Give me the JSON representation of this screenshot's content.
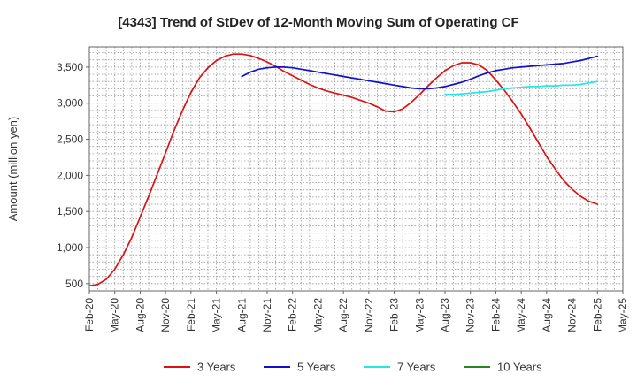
{
  "chart_data": {
    "type": "line",
    "title": "[4343]  Trend of StDev of 12-Month Moving Sum of Operating CF",
    "ylabel": "Amount (million yen)",
    "xlabel": "",
    "ylim": [
      400,
      3780
    ],
    "yticks": [
      500,
      1000,
      1500,
      2000,
      2500,
      3000,
      3500
    ],
    "ytick_labels": [
      "500",
      "1,000",
      "1,500",
      "2,000",
      "2,500",
      "3,000",
      "3,500"
    ],
    "xticks": [
      "2020-02",
      "2020-05",
      "2020-08",
      "2020-11",
      "2021-02",
      "2021-05",
      "2021-08",
      "2021-11",
      "2022-02",
      "2022-05",
      "2022-08",
      "2022-11",
      "2023-02",
      "2023-05",
      "2023-08",
      "2023-11",
      "2024-02",
      "2024-05",
      "2024-08",
      "2024-11",
      "2025-02",
      "2025-05"
    ],
    "xtick_labels": [
      "Feb-20",
      "May-20",
      "Aug-20",
      "Nov-20",
      "Feb-21",
      "May-21",
      "Aug-21",
      "Nov-21",
      "Feb-22",
      "May-22",
      "Aug-22",
      "Nov-22",
      "Feb-23",
      "May-23",
      "Aug-23",
      "Nov-23",
      "Feb-24",
      "May-24",
      "Aug-24",
      "Nov-24",
      "Feb-25",
      "May-25"
    ],
    "grid": true,
    "legend_position": "bottom",
    "series": [
      {
        "name": "3 Years",
        "color": "#dd1111",
        "x": [
          "2020-02",
          "2020-03",
          "2020-04",
          "2020-05",
          "2020-06",
          "2020-07",
          "2020-08",
          "2020-09",
          "2020-10",
          "2020-11",
          "2020-12",
          "2021-01",
          "2021-02",
          "2021-03",
          "2021-04",
          "2021-05",
          "2021-06",
          "2021-07",
          "2021-08",
          "2021-09",
          "2021-10",
          "2021-11",
          "2021-12",
          "2022-01",
          "2022-02",
          "2022-03",
          "2022-04",
          "2022-05",
          "2022-06",
          "2022-07",
          "2022-08",
          "2022-09",
          "2022-10",
          "2022-11",
          "2022-12",
          "2023-01",
          "2023-02",
          "2023-03",
          "2023-04",
          "2023-05",
          "2023-06",
          "2023-07",
          "2023-08",
          "2023-09",
          "2023-10",
          "2023-11",
          "2023-12",
          "2024-01",
          "2024-02",
          "2024-03",
          "2024-04",
          "2024-05",
          "2024-06",
          "2024-07",
          "2024-08",
          "2024-09",
          "2024-10",
          "2024-11",
          "2024-12",
          "2025-01",
          "2025-02"
        ],
        "values": [
          470,
          490,
          560,
          700,
          900,
          1140,
          1420,
          1710,
          2010,
          2310,
          2620,
          2900,
          3150,
          3350,
          3490,
          3590,
          3650,
          3680,
          3680,
          3660,
          3620,
          3570,
          3510,
          3440,
          3380,
          3320,
          3260,
          3210,
          3170,
          3140,
          3110,
          3080,
          3040,
          3000,
          2950,
          2890,
          2880,
          2920,
          3010,
          3120,
          3240,
          3350,
          3450,
          3520,
          3560,
          3560,
          3530,
          3450,
          3320,
          3180,
          3020,
          2850,
          2660,
          2460,
          2260,
          2090,
          1930,
          1810,
          1710,
          1640,
          1600
        ]
      },
      {
        "name": "5 Years",
        "color": "#1111cc",
        "x": [
          "2021-08",
          "2021-09",
          "2021-10",
          "2021-11",
          "2021-12",
          "2022-01",
          "2022-02",
          "2022-03",
          "2022-04",
          "2022-05",
          "2022-06",
          "2022-07",
          "2022-08",
          "2022-09",
          "2022-10",
          "2022-11",
          "2022-12",
          "2023-01",
          "2023-02",
          "2023-03",
          "2023-04",
          "2023-05",
          "2023-06",
          "2023-07",
          "2023-08",
          "2023-09",
          "2023-10",
          "2023-11",
          "2023-12",
          "2024-01",
          "2024-02",
          "2024-03",
          "2024-04",
          "2024-05",
          "2024-06",
          "2024-07",
          "2024-08",
          "2024-09",
          "2024-10",
          "2024-11",
          "2024-12",
          "2025-01",
          "2025-02"
        ],
        "values": [
          3370,
          3430,
          3470,
          3490,
          3500,
          3500,
          3490,
          3470,
          3450,
          3430,
          3410,
          3390,
          3370,
          3350,
          3330,
          3310,
          3290,
          3270,
          3250,
          3230,
          3210,
          3200,
          3200,
          3210,
          3230,
          3260,
          3290,
          3330,
          3380,
          3420,
          3450,
          3470,
          3490,
          3500,
          3510,
          3520,
          3530,
          3540,
          3550,
          3570,
          3590,
          3620,
          3650
        ]
      },
      {
        "name": "7 Years",
        "color": "#22e8e8",
        "x": [
          "2023-08",
          "2023-09",
          "2023-10",
          "2023-11",
          "2023-12",
          "2024-01",
          "2024-02",
          "2024-03",
          "2024-04",
          "2024-05",
          "2024-06",
          "2024-07",
          "2024-08",
          "2024-09",
          "2024-10",
          "2024-11",
          "2024-12",
          "2025-01",
          "2025-02"
        ],
        "values": [
          3120,
          3120,
          3130,
          3140,
          3150,
          3160,
          3180,
          3200,
          3210,
          3220,
          3230,
          3230,
          3240,
          3240,
          3250,
          3250,
          3260,
          3280,
          3300
        ]
      },
      {
        "name": "10 Years",
        "color": "#228822",
        "x": [],
        "values": []
      }
    ]
  }
}
